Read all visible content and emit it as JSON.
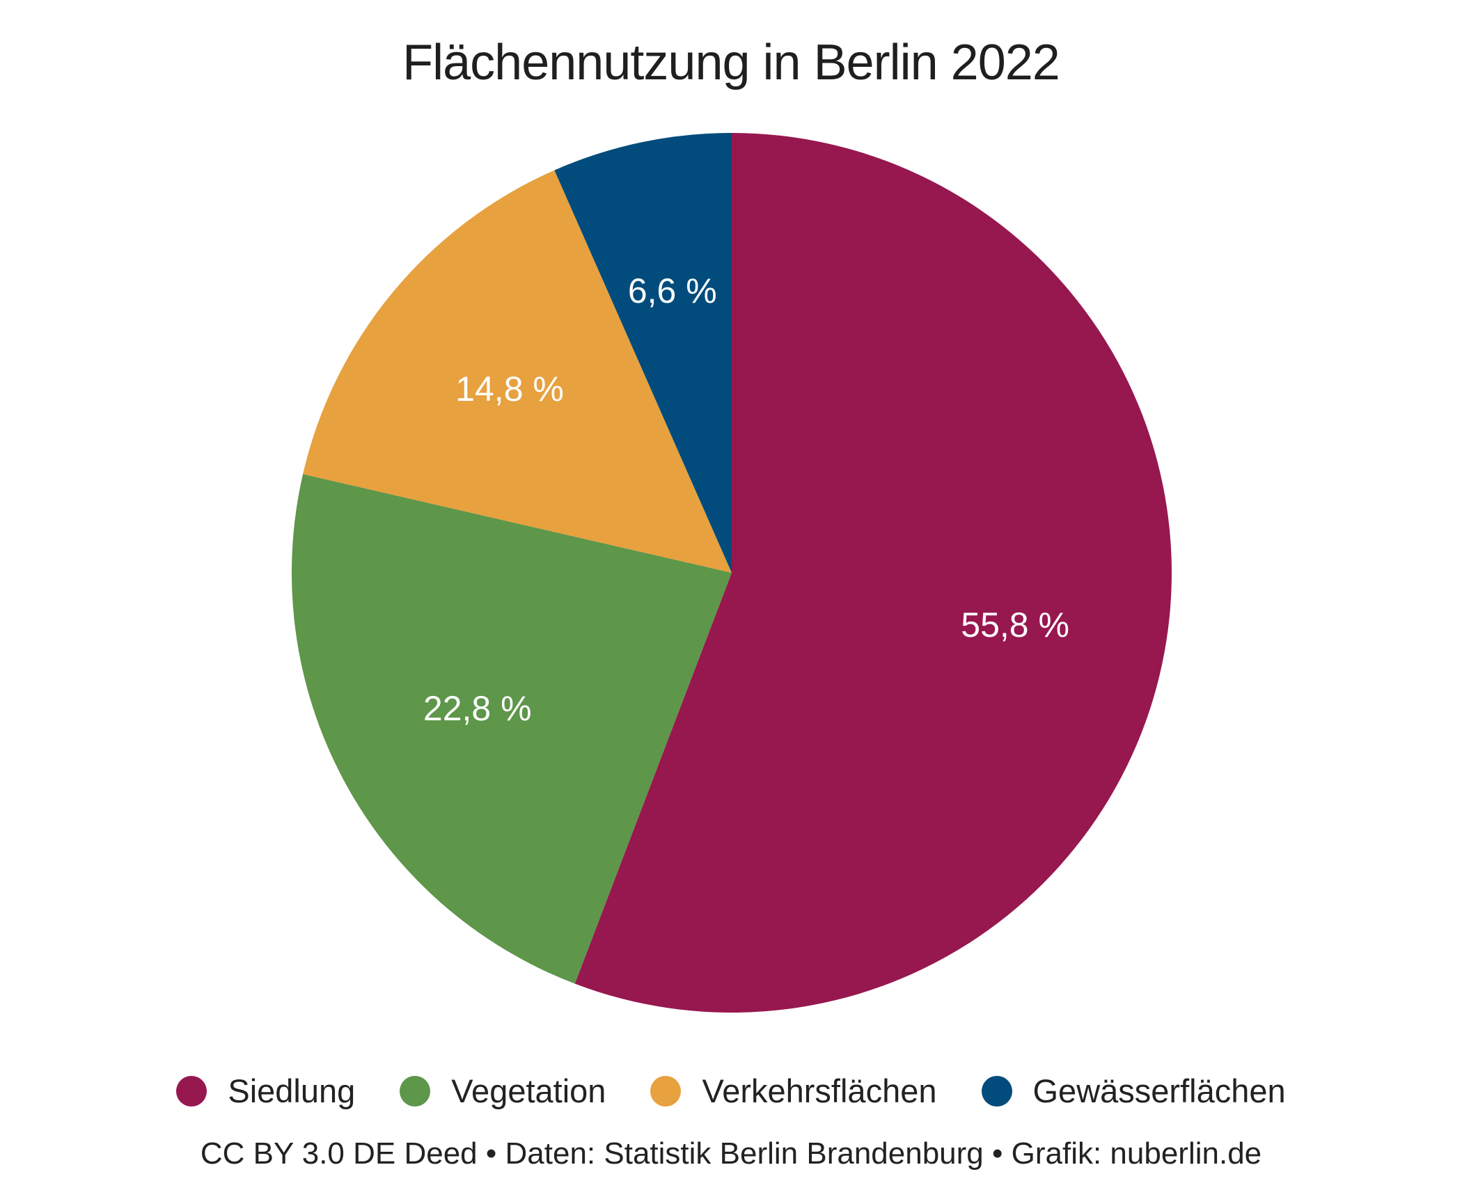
{
  "chart_data": {
    "type": "pie",
    "title": "Flächennutzung in Berlin 2022",
    "start_angle_deg": 0,
    "direction": "clockwise",
    "slices": [
      {
        "name": "Siedlung",
        "value": 55.8,
        "label": "55,8 %",
        "color": "#97174f"
      },
      {
        "name": "Vegetation",
        "value": 22.8,
        "label": "22,8 %",
        "color": "#5e964a"
      },
      {
        "name": "Verkehrsflächen",
        "value": 14.8,
        "label": "14,8 %",
        "color": "#e7a13f"
      },
      {
        "name": "Gewässerflächen",
        "value": 6.6,
        "label": "6,6 %",
        "color": "#014c7c"
      }
    ],
    "legend": [
      "Siedlung",
      "Vegetation",
      "Verkehrsflächen",
      "Gewässerflächen"
    ],
    "legend_placement": "bottom"
  },
  "footer": "CC BY 3.0 DE Deed • Daten: Statistik Berlin Brandenburg • Grafik: nuberlin.de"
}
